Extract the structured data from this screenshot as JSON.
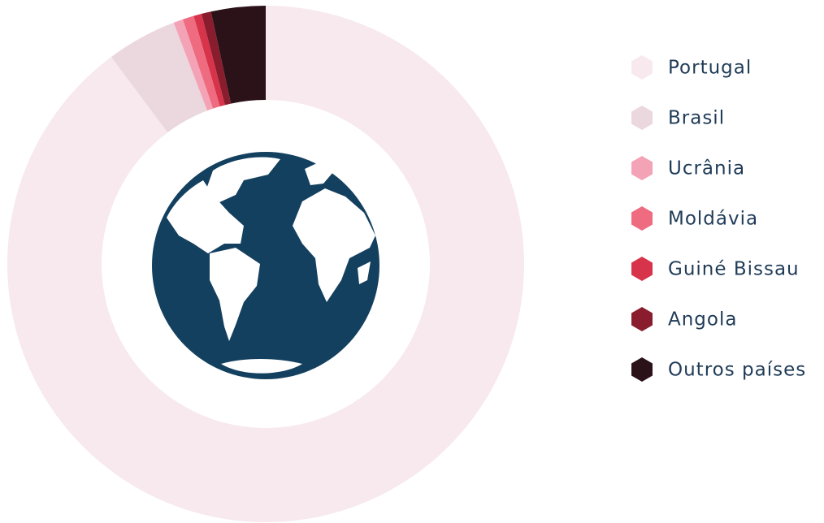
{
  "chart_data": {
    "type": "pie",
    "categories": [
      "Portugal",
      "Brasil",
      "Ucrânia",
      "Moldávia",
      "Guiné Bissau",
      "Angola",
      "Outros países"
    ],
    "values": [
      89.8,
      4.4,
      0.6,
      0.7,
      0.5,
      0.6,
      3.4
    ],
    "colors": [
      "#f7e9ed",
      "#ebd8de",
      "#f4a3b6",
      "#ee6b80",
      "#d7344b",
      "#8a1d2d",
      "#2b1219"
    ],
    "donut": true
  }
}
